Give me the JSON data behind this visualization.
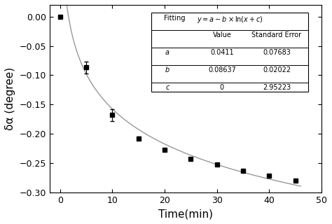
{
  "x_data": [
    0,
    5,
    10,
    15,
    20,
    25,
    30,
    35,
    40,
    45
  ],
  "y_data": [
    0.0,
    -0.087,
    -0.168,
    -0.208,
    -0.228,
    -0.243,
    -0.253,
    -0.263,
    -0.272,
    -0.28
  ],
  "y_err": [
    0.002,
    0.01,
    0.01,
    0.003,
    0.002,
    0.002,
    0.002,
    0.002,
    0.002,
    0.002
  ],
  "fit_a": 0.0411,
  "fit_b": 0.08637,
  "fit_c": 1e-10,
  "xlabel": "Time(min)",
  "ylabel": "δα (degree)",
  "xlim": [
    -2,
    50
  ],
  "ylim": [
    -0.3,
    0.02
  ],
  "xticks": [
    0,
    10,
    20,
    30,
    40,
    50
  ],
  "yticks": [
    0.0,
    -0.05,
    -0.1,
    -0.15,
    -0.2,
    -0.25,
    -0.3
  ],
  "table_title": "Fitting",
  "table_formula": "y=a-b×ln(x+c)",
  "table_rows": [
    [
      "a",
      "0.0411",
      "0.07683"
    ],
    [
      "b",
      "0.08637",
      "0.02022"
    ],
    [
      "c",
      "0",
      "2.95223"
    ]
  ],
  "line_color": "#999999",
  "marker_color": "#000000",
  "background": "#ffffff"
}
